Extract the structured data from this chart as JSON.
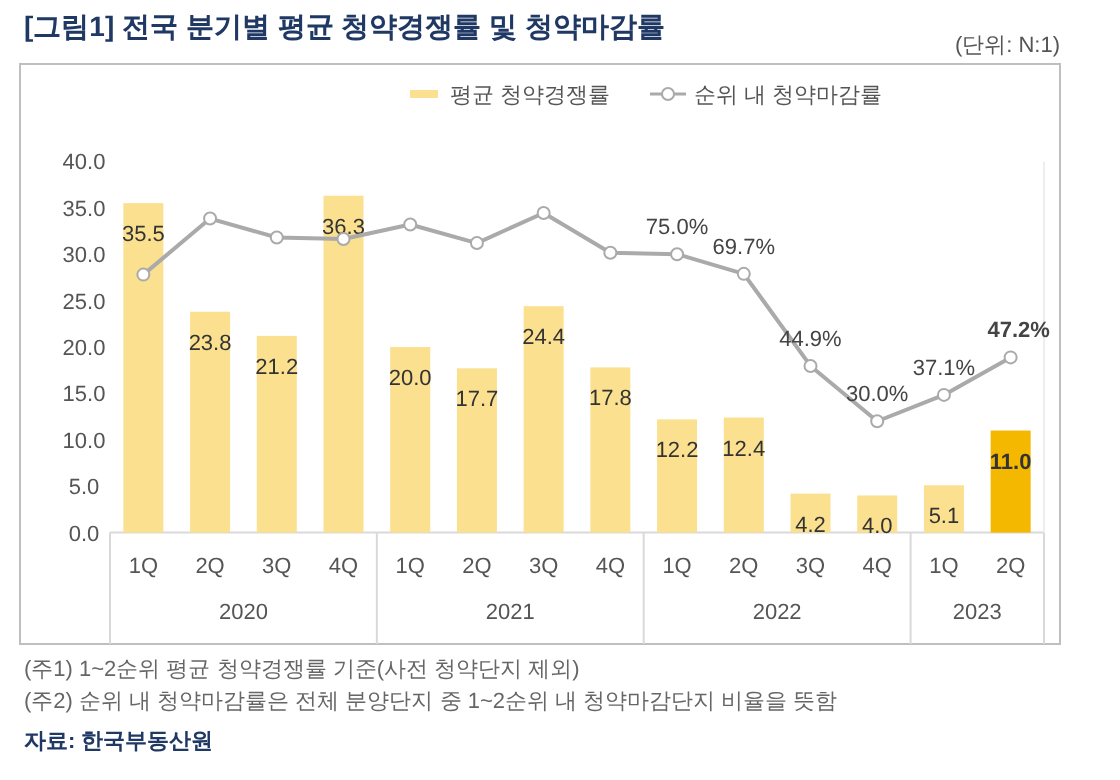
{
  "chart_data": {
    "type": "bar",
    "title": "[그림1] 전국 분기별 평균 청약경쟁률 및 청약마감률",
    "categories": [
      "1Q",
      "2Q",
      "3Q",
      "4Q",
      "1Q",
      "2Q",
      "3Q",
      "4Q",
      "1Q",
      "2Q",
      "3Q",
      "4Q",
      "1Q",
      "2Q"
    ],
    "series": [
      {
        "name": "평균 청약경쟁률",
        "color": "#fbe08f",
        "colors": [
          "#fbe08f",
          "#fbe08f",
          "#fbe08f",
          "#fbe08f",
          "#fbe08f",
          "#fbe08f",
          "#fbe08f",
          "#fbe08f",
          "#fbe08f",
          "#fbe08f",
          "#fbe08f",
          "#fbe08f",
          "#fbe08f",
          "#f5b800"
        ],
        "values": [
          35.5,
          23.8,
          21.2,
          36.3,
          20.0,
          17.7,
          24.4,
          17.8,
          12.2,
          12.4,
          4.2,
          4.0,
          5.1,
          11.0
        ],
        "value_labels": [
          "35.5",
          "23.8",
          "21.2",
          "36.3",
          "20.0",
          "17.7",
          "24.4",
          "17.8",
          "12.2",
          "12.4",
          "4.2",
          "4.0",
          "5.1",
          "11.0"
        ]
      },
      {
        "name": "순위 내 청약마감률",
        "type": "line",
        "axis": "y2",
        "color": "#aaaaaa",
        "marker": "circle",
        "values": [
          69.5,
          84.6,
          79.5,
          79.1,
          83.0,
          78.0,
          86.1,
          75.4,
          75.0,
          69.7,
          44.9,
          30.0,
          37.1,
          47.2
        ],
        "value_labels": [
          null,
          null,
          null,
          null,
          null,
          null,
          null,
          null,
          "75.0%",
          "69.7%",
          "44.9%",
          "30.0%",
          "37.1%",
          "47.2%"
        ]
      }
    ],
    "ylim": [
      0,
      40
    ],
    "yticks": [
      {
        "value": 0,
        "label": "0.0"
      },
      {
        "value": 5,
        "label": "5.0"
      },
      {
        "value": 10,
        "label": "10.0"
      },
      {
        "value": 15,
        "label": "15.0"
      },
      {
        "value": 20,
        "label": "20.0"
      },
      {
        "value": 25,
        "label": "25.0"
      },
      {
        "value": 30,
        "label": "30.0"
      },
      {
        "value": 35,
        "label": "35.0"
      },
      {
        "value": 40,
        "label": "40.0"
      }
    ],
    "y2lim": [
      0,
      100
    ],
    "grid": false,
    "legend": "top",
    "annotations": [
      "(단위: N:1)",
      "(주1) 1~2순위 평균 청약경쟁률 기준(사전 청약단지 제외)",
      "(주2) 순위 내 청약마감률은 전체 분양단지 중 1~2순위 내 청약마감단지 비율을 뜻함",
      "자료: 한국부동산원",
      "2020",
      "2021",
      "2022",
      "2023"
    ]
  }
}
